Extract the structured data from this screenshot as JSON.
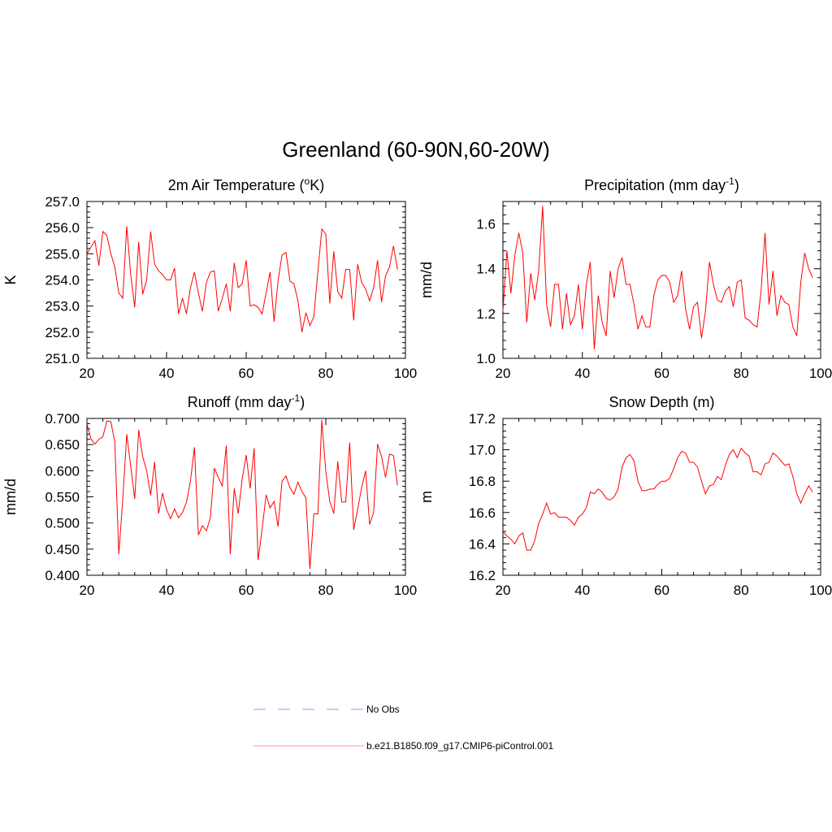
{
  "figure": {
    "title": "Greenland (60-90N,60-20W)",
    "line_color": "#ff0000",
    "obs_color": "#9999ff"
  },
  "legend": {
    "items": [
      {
        "label": "No Obs",
        "style": "dashed",
        "color": "#9999ff"
      },
      {
        "label": "b.e21.B1850.f09_g17.CMIP6-piControl.001",
        "style": "solid",
        "color": "#ff9999"
      }
    ]
  },
  "chart_data": [
    {
      "type": "line",
      "title_main": "2m Air Temperature (",
      "title_sup": "o",
      "title_tail": "K)",
      "ylabel": "K",
      "xlim": [
        20,
        100
      ],
      "ylim": [
        251.0,
        257.0
      ],
      "xticks": [
        "20",
        "40",
        "60",
        "80",
        "100"
      ],
      "yticks": [
        "251.0",
        "252.0",
        "253.0",
        "254.0",
        "255.0",
        "256.0",
        "257.0"
      ],
      "x_start": 20,
      "values": [
        255.0,
        255.25,
        255.5,
        254.55,
        255.85,
        255.7,
        255.0,
        254.5,
        253.5,
        253.3,
        256.05,
        254.2,
        252.95,
        255.45,
        253.45,
        254.0,
        255.85,
        254.6,
        254.35,
        254.2,
        254.0,
        254.0,
        254.45,
        252.7,
        253.3,
        252.7,
        253.7,
        254.3,
        253.5,
        252.8,
        253.9,
        254.3,
        254.35,
        252.8,
        253.3,
        253.85,
        252.8,
        254.65,
        253.7,
        253.85,
        254.75,
        253.0,
        253.05,
        252.95,
        252.7,
        253.5,
        254.3,
        252.4,
        253.95,
        254.95,
        255.05,
        253.95,
        253.85,
        253.2,
        252.0,
        252.75,
        252.25,
        252.6,
        254.3,
        255.95,
        255.75,
        253.1,
        255.1,
        253.55,
        253.3,
        254.4,
        254.4,
        252.45,
        254.6,
        253.9,
        253.65,
        253.2,
        253.7,
        254.75,
        253.15,
        254.15,
        254.5,
        255.3,
        254.4
      ]
    },
    {
      "type": "line",
      "title_main": "Precipitation (mm day",
      "title_sup": "-1",
      "title_tail": ")",
      "ylabel": "mm/d",
      "xlim": [
        20,
        100
      ],
      "ylim": [
        1.0,
        1.7
      ],
      "xticks": [
        "20",
        "40",
        "60",
        "80",
        "100"
      ],
      "yticks": [
        "1.0",
        "1.2",
        "1.4",
        "1.6"
      ],
      "x_start": 20,
      "values": [
        1.21,
        1.48,
        1.29,
        1.46,
        1.56,
        1.47,
        1.16,
        1.38,
        1.26,
        1.39,
        1.68,
        1.24,
        1.14,
        1.33,
        1.33,
        1.13,
        1.29,
        1.15,
        1.19,
        1.33,
        1.13,
        1.33,
        1.43,
        1.04,
        1.28,
        1.16,
        1.1,
        1.39,
        1.27,
        1.4,
        1.45,
        1.33,
        1.33,
        1.24,
        1.13,
        1.19,
        1.14,
        1.14,
        1.28,
        1.35,
        1.37,
        1.37,
        1.34,
        1.25,
        1.28,
        1.39,
        1.22,
        1.13,
        1.23,
        1.25,
        1.09,
        1.21,
        1.43,
        1.33,
        1.26,
        1.25,
        1.3,
        1.32,
        1.23,
        1.34,
        1.35,
        1.18,
        1.17,
        1.15,
        1.14,
        1.3,
        1.56,
        1.24,
        1.39,
        1.19,
        1.28,
        1.25,
        1.24,
        1.14,
        1.1,
        1.34,
        1.47,
        1.4,
        1.36
      ]
    },
    {
      "type": "line",
      "title_main": "Runoff (mm day",
      "title_sup": "-1",
      "title_tail": ")",
      "ylabel": "mm/d",
      "xlim": [
        20,
        100
      ],
      "ylim": [
        0.4,
        0.7
      ],
      "xticks": [
        "20",
        "40",
        "60",
        "80",
        "100"
      ],
      "yticks": [
        "0.400",
        "0.450",
        "0.500",
        "0.550",
        "0.600",
        "0.650",
        "0.700"
      ],
      "x_start": 20,
      "values": [
        0.69,
        0.661,
        0.651,
        0.66,
        0.665,
        0.695,
        0.694,
        0.655,
        0.44,
        0.545,
        0.67,
        0.608,
        0.546,
        0.678,
        0.627,
        0.6,
        0.553,
        0.617,
        0.518,
        0.557,
        0.526,
        0.508,
        0.527,
        0.51,
        0.52,
        0.54,
        0.58,
        0.645,
        0.477,
        0.495,
        0.485,
        0.51,
        0.605,
        0.587,
        0.571,
        0.648,
        0.44,
        0.566,
        0.518,
        0.584,
        0.63,
        0.566,
        0.643,
        0.429,
        0.488,
        0.554,
        0.529,
        0.541,
        0.493,
        0.58,
        0.59,
        0.567,
        0.555,
        0.578,
        0.56,
        0.548,
        0.412,
        0.518,
        0.517,
        0.697,
        0.598,
        0.541,
        0.518,
        0.618,
        0.54,
        0.54,
        0.654,
        0.487,
        0.526,
        0.568,
        0.6,
        0.497,
        0.52,
        0.651,
        0.627,
        0.587,
        0.632,
        0.629,
        0.572
      ]
    },
    {
      "type": "line",
      "title_main": "Snow Depth (m)",
      "title_sup": "",
      "title_tail": "",
      "ylabel": "m",
      "xlim": [
        20,
        100
      ],
      "ylim": [
        16.2,
        17.2
      ],
      "xticks": [
        "20",
        "40",
        "60",
        "80",
        "100"
      ],
      "yticks": [
        "16.2",
        "16.4",
        "16.6",
        "16.8",
        "17.0",
        "17.2"
      ],
      "x_start": 20,
      "values": [
        16.48,
        16.45,
        16.43,
        16.4,
        16.45,
        16.47,
        16.36,
        16.36,
        16.42,
        16.53,
        16.59,
        16.66,
        16.59,
        16.6,
        16.57,
        16.57,
        16.57,
        16.55,
        16.52,
        16.57,
        16.59,
        16.63,
        16.73,
        16.72,
        16.75,
        16.73,
        16.69,
        16.68,
        16.7,
        16.75,
        16.89,
        16.95,
        16.97,
        16.93,
        16.8,
        16.74,
        16.74,
        16.75,
        16.75,
        16.78,
        16.8,
        16.8,
        16.82,
        16.88,
        16.95,
        16.99,
        16.98,
        16.92,
        16.92,
        16.89,
        16.8,
        16.72,
        16.77,
        16.78,
        16.83,
        16.81,
        16.9,
        16.97,
        17.0,
        16.95,
        17.01,
        16.98,
        16.96,
        16.86,
        16.86,
        16.84,
        16.91,
        16.92,
        16.98,
        16.96,
        16.93,
        16.9,
        16.91,
        16.83,
        16.72,
        16.66,
        16.72,
        16.77,
        16.73
      ]
    }
  ]
}
